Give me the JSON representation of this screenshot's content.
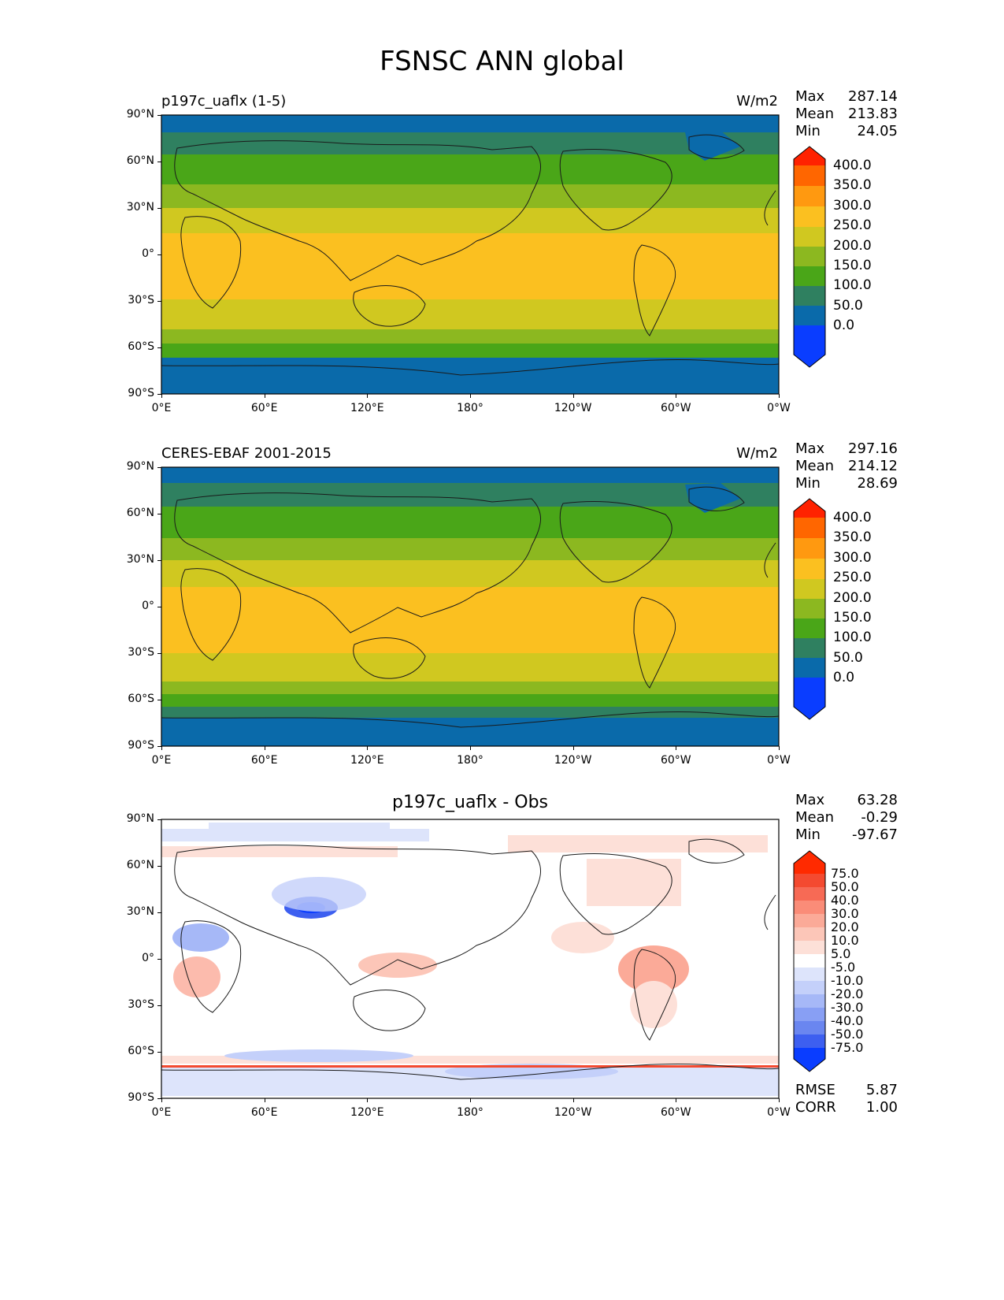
{
  "title": "FSNSC ANN global",
  "map_axes": {
    "lat_ticks": [
      "90°N",
      "60°N",
      "30°N",
      "0°",
      "30°S",
      "60°S",
      "90°S"
    ],
    "lon_ticks": [
      "0°E",
      "60°E",
      "120°E",
      "180°",
      "120°W",
      "60°W",
      "0°W"
    ]
  },
  "panels": [
    {
      "title": "p197c_uaflx (1-5)",
      "units": "W/m2",
      "stats": {
        "max_label": "Max",
        "max": "287.14",
        "mean_label": "Mean",
        "mean": "213.83",
        "min_label": "Min",
        "min": "24.05"
      },
      "colorbar_labels": [
        "400.0",
        "350.0",
        "300.0",
        "250.0",
        "200.0",
        "150.0",
        "100.0",
        "50.0",
        "0.0"
      ],
      "colors": [
        "#ff2200",
        "#ff6600",
        "#ff9910",
        "#fbc020",
        "#d0c820",
        "#8cb820",
        "#4aa618",
        "#2f8060",
        "#0a6aaa",
        "#0a3dff"
      ]
    },
    {
      "title": "CERES-EBAF 2001-2015",
      "units": "W/m2",
      "stats": {
        "max_label": "Max",
        "max": "297.16",
        "mean_label": "Mean",
        "mean": "214.12",
        "min_label": "Min",
        "min": "28.69"
      },
      "colorbar_labels": [
        "400.0",
        "350.0",
        "300.0",
        "250.0",
        "200.0",
        "150.0",
        "100.0",
        "50.0",
        "0.0"
      ],
      "colors": [
        "#ff2200",
        "#ff6600",
        "#ff9910",
        "#fbc020",
        "#d0c820",
        "#8cb820",
        "#4aa618",
        "#2f8060",
        "#0a6aaa",
        "#0a3dff"
      ]
    },
    {
      "title": "p197c_uaflx - Obs",
      "stats": {
        "max_label": "Max",
        "max": "63.28",
        "mean_label": "Mean",
        "mean": "-0.29",
        "min_label": "Min",
        "min": "-97.67"
      },
      "colorbar_labels": [
        "75.0",
        "50.0",
        "40.0",
        "30.0",
        "20.0",
        "10.0",
        "5.0",
        "-5.0",
        "-10.0",
        "-20.0",
        "-30.0",
        "-40.0",
        "-50.0",
        "-75.0"
      ],
      "colors": [
        "#ff2a00",
        "#f44a30",
        "#f76a55",
        "#fa8c78",
        "#fbaa98",
        "#fcc6b8",
        "#fde0d8",
        "#ffffff",
        "#dde4fb",
        "#c4d0fa",
        "#a6b8f7",
        "#889ff4",
        "#6a86f0",
        "#3d5ff0",
        "#0a3dff"
      ],
      "rmse_label": "RMSE",
      "rmse": "5.87",
      "corr_label": "CORR",
      "corr": "1.00"
    }
  ]
}
